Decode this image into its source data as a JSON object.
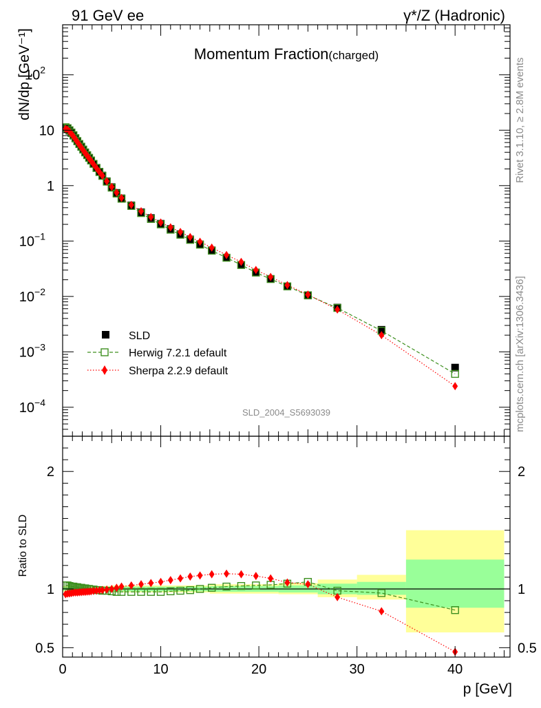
{
  "header": {
    "left": "91 GeV ee",
    "right": "γ*/Z (Hadronic)"
  },
  "side_labels": {
    "rivet": "Rivet 3.1.10, ≥ 2.8M events",
    "mcplots": "mcplots.cern.ch [arXiv:1306.3436]"
  },
  "watermark": "SLD_2004_S5693039",
  "main_title": {
    "text": "Momentum Fraction",
    "sub": "(charged)"
  },
  "colors": {
    "data": "#000000",
    "herwig": "#3d8f1f",
    "sherpa": "#ff0000",
    "band_inner": "#99ff99",
    "band_outer": "#ffff99"
  },
  "chart_data": [
    {
      "type": "scatter",
      "panel": "main",
      "ylabel": "dN/dp [GeV⁻¹]",
      "yscale": "log",
      "ylim": [
        3e-05,
        800
      ],
      "xlim": [
        0,
        45.6
      ],
      "y_tick_labels": [
        "10^-4",
        "10^-3",
        "10^-2",
        "10^-1",
        "1",
        "10",
        "10^2"
      ],
      "legend_position": "lower-left",
      "series": [
        {
          "name": "SLD",
          "x": [
            0.3,
            0.5,
            0.7,
            0.9,
            1.1,
            1.3,
            1.5,
            1.7,
            1.9,
            2.1,
            2.3,
            2.5,
            2.7,
            2.9,
            3.15,
            3.45,
            3.75,
            4.05,
            4.5,
            5.0,
            5.5,
            6.0,
            7.0,
            8.0,
            9.0,
            10.0,
            11.0,
            12.0,
            13.0,
            14.0,
            15.2,
            16.7,
            18.2,
            19.7,
            21.2,
            22.9,
            25.0,
            28.0,
            32.5,
            40.0
          ],
          "y": [
            11.0,
            10.6,
            9.8,
            8.9,
            8.0,
            7.1,
            6.3,
            5.6,
            5.0,
            4.45,
            3.97,
            3.55,
            3.18,
            2.85,
            2.48,
            2.1,
            1.78,
            1.52,
            1.2,
            0.94,
            0.74,
            0.59,
            0.44,
            0.33,
            0.26,
            0.205,
            0.165,
            0.133,
            0.107,
            0.087,
            0.068,
            0.05,
            0.037,
            0.027,
            0.0207,
            0.0152,
            0.0104,
            0.0063,
            0.0025,
            0.00052
          ]
        },
        {
          "name": "Herwig 7.2.1 default",
          "x": [
            0.3,
            0.5,
            0.7,
            0.9,
            1.1,
            1.3,
            1.5,
            1.7,
            1.9,
            2.1,
            2.3,
            2.5,
            2.7,
            2.9,
            3.15,
            3.45,
            3.75,
            4.05,
            4.5,
            5.0,
            5.5,
            6.0,
            7.0,
            8.0,
            9.0,
            10.0,
            11.0,
            12.0,
            13.0,
            14.0,
            15.2,
            16.7,
            18.2,
            19.7,
            21.2,
            22.9,
            25.0,
            28.0,
            32.5,
            40.0
          ],
          "y": [
            11.3,
            10.9,
            10.0,
            9.1,
            8.15,
            7.2,
            6.38,
            5.65,
            5.05,
            4.48,
            3.98,
            3.55,
            3.17,
            2.84,
            2.47,
            2.08,
            1.76,
            1.5,
            1.18,
            0.92,
            0.72,
            0.58,
            0.43,
            0.32,
            0.25,
            0.2,
            0.16,
            0.13,
            0.105,
            0.086,
            0.067,
            0.05,
            0.037,
            0.027,
            0.0206,
            0.0152,
            0.0105,
            0.0062,
            0.0024,
            0.0004
          ]
        },
        {
          "name": "Sherpa 2.2.9 default",
          "x": [
            0.3,
            0.5,
            0.7,
            0.9,
            1.1,
            1.3,
            1.5,
            1.7,
            1.9,
            2.1,
            2.3,
            2.5,
            2.7,
            2.9,
            3.15,
            3.45,
            3.75,
            4.05,
            4.5,
            5.0,
            5.5,
            6.0,
            7.0,
            8.0,
            9.0,
            10.0,
            11.0,
            12.0,
            13.0,
            14.0,
            15.2,
            16.7,
            18.2,
            19.7,
            21.2,
            22.9,
            25.0,
            28.0,
            32.5,
            40.0
          ],
          "y": [
            10.6,
            10.2,
            9.45,
            8.6,
            7.75,
            6.9,
            6.12,
            5.45,
            4.87,
            4.34,
            3.87,
            3.47,
            3.11,
            2.8,
            2.44,
            2.07,
            1.76,
            1.51,
            1.2,
            0.95,
            0.75,
            0.6,
            0.45,
            0.345,
            0.272,
            0.216,
            0.177,
            0.146,
            0.118,
            0.097,
            0.076,
            0.056,
            0.042,
            0.03,
            0.0225,
            0.016,
            0.0108,
            0.0058,
            0.002,
            0.00024
          ]
        }
      ]
    },
    {
      "type": "line",
      "panel": "ratio",
      "ylabel": "Ratio to SLD",
      "xlabel": "p [GeV]",
      "ylim": [
        0.42,
        2.3
      ],
      "xlim": [
        0,
        45.6
      ],
      "x_ticks": [
        0,
        10,
        20,
        30,
        40
      ],
      "y_ticks": [
        0.5,
        1,
        2
      ],
      "bands": [
        {
          "x0": 0,
          "x1": 5,
          "inner": [
            0.985,
            1.015
          ],
          "outer": [
            0.975,
            1.025
          ]
        },
        {
          "x0": 5,
          "x1": 15,
          "inner": [
            0.98,
            1.02
          ],
          "outer": [
            0.97,
            1.03
          ]
        },
        {
          "x0": 15,
          "x1": 22,
          "inner": [
            0.975,
            1.025
          ],
          "outer": [
            0.96,
            1.04
          ]
        },
        {
          "x0": 22,
          "x1": 26,
          "inner": [
            0.97,
            1.03
          ],
          "outer": [
            0.955,
            1.05
          ]
        },
        {
          "x0": 26,
          "x1": 30,
          "inner": [
            0.955,
            1.045
          ],
          "outer": [
            0.93,
            1.08
          ]
        },
        {
          "x0": 30,
          "x1": 35,
          "inner": [
            0.95,
            1.06
          ],
          "outer": [
            0.91,
            1.12
          ]
        },
        {
          "x0": 35,
          "x1": 45,
          "inner": [
            0.84,
            1.25
          ],
          "outer": [
            0.63,
            1.5
          ]
        }
      ],
      "series": [
        {
          "name": "Herwig 7.2.1 default",
          "x": [
            0.3,
            0.5,
            0.7,
            0.9,
            1.1,
            1.3,
            1.5,
            1.7,
            1.9,
            2.1,
            2.3,
            2.5,
            2.7,
            2.9,
            3.15,
            3.45,
            3.75,
            4.05,
            4.5,
            5.0,
            5.5,
            6.0,
            7.0,
            8.0,
            9.0,
            10.0,
            11.0,
            12.0,
            13.0,
            14.0,
            15.2,
            16.7,
            18.2,
            19.7,
            21.2,
            22.9,
            25.0,
            28.0,
            32.5,
            40.0
          ],
          "y": [
            1.03,
            1.03,
            1.025,
            1.02,
            1.02,
            1.015,
            1.015,
            1.01,
            1.01,
            1.005,
            1.005,
            1.0,
            1.0,
            0.995,
            0.995,
            0.99,
            0.99,
            0.985,
            0.985,
            0.98,
            0.975,
            0.975,
            0.975,
            0.975,
            0.975,
            0.975,
            0.98,
            0.985,
            0.99,
            1.0,
            1.01,
            1.02,
            1.025,
            1.03,
            1.035,
            1.045,
            1.06,
            0.985,
            0.965,
            0.82
          ]
        },
        {
          "name": "Sherpa 2.2.9 default",
          "x": [
            0.3,
            0.5,
            0.7,
            0.9,
            1.1,
            1.3,
            1.5,
            1.7,
            1.9,
            2.1,
            2.3,
            2.5,
            2.7,
            2.9,
            3.15,
            3.45,
            3.75,
            4.05,
            4.5,
            5.0,
            5.5,
            6.0,
            7.0,
            8.0,
            9.0,
            10.0,
            11.0,
            12.0,
            13.0,
            14.0,
            15.2,
            16.7,
            18.2,
            19.7,
            21.2,
            22.9,
            25.0,
            28.0,
            32.5,
            40.0
          ],
          "y": [
            0.955,
            0.96,
            0.962,
            0.965,
            0.968,
            0.97,
            0.97,
            0.972,
            0.973,
            0.975,
            0.975,
            0.977,
            0.978,
            0.98,
            0.983,
            0.985,
            0.988,
            0.99,
            0.995,
            1.0,
            1.01,
            1.02,
            1.03,
            1.04,
            1.05,
            1.06,
            1.075,
            1.09,
            1.105,
            1.115,
            1.125,
            1.13,
            1.125,
            1.11,
            1.09,
            1.055,
            1.04,
            0.93,
            0.81,
            0.465
          ]
        }
      ]
    }
  ]
}
